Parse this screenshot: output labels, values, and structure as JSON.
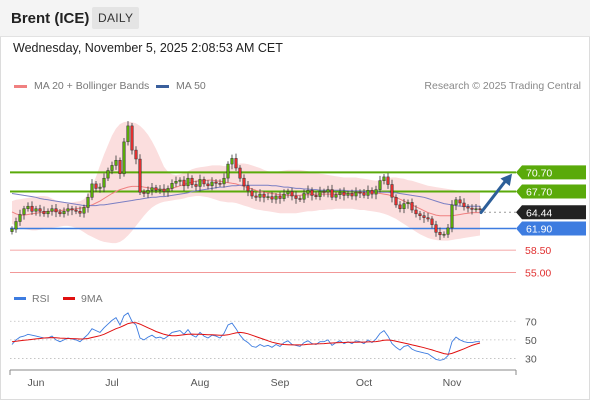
{
  "header": {
    "title": "Brent (ICE)",
    "period": "DAILY"
  },
  "datetime": "Wednesday, November 5, 2025 2:08:53 AM CET",
  "legend": [
    {
      "label": "MA 20 + Bollinger Bands",
      "color": "#f08080"
    },
    {
      "label": "MA 50",
      "color": "#3a5f9c"
    }
  ],
  "credit": "Research © 2025 Trading Central",
  "chart_data": {
    "type": "candlestick",
    "x_ticks": [
      "Jun",
      "Jul",
      "Aug",
      "Sep",
      "Oct",
      "Nov"
    ],
    "price_ylim": [
      53.5,
      80.5
    ],
    "levels": [
      {
        "label": "70.70",
        "value": 70.7,
        "color": "#5aaa0a",
        "kind": "resistance"
      },
      {
        "label": "67.70",
        "value": 67.7,
        "color": "#5aaa0a",
        "kind": "resistance"
      },
      {
        "label": "64.44",
        "value": 64.44,
        "color": "#222222",
        "kind": "last"
      },
      {
        "label": "61.90",
        "value": 61.9,
        "color": "#3d7ce0",
        "kind": "pivot"
      },
      {
        "label": "58.50",
        "value": 58.5,
        "color": "#e03030",
        "kind": "support"
      },
      {
        "label": "55.00",
        "value": 55.0,
        "color": "#e03030",
        "kind": "support"
      }
    ],
    "forecast_arrow": {
      "from": 64.4,
      "to": 70.5
    },
    "close": [
      61.8,
      63.0,
      64.1,
      65.0,
      65.4,
      64.6,
      65.0,
      64.6,
      64.2,
      64.6,
      65.0,
      64.5,
      64.2,
      64.6,
      65.0,
      64.8,
      64.6,
      64.3,
      65.2,
      66.8,
      68.9,
      68.2,
      68.4,
      69.8,
      71.0,
      71.8,
      72.6,
      70.5,
      75.5,
      78.0,
      74.2,
      72.8,
      67.6,
      67.4,
      67.9,
      68.3,
      67.9,
      68.1,
      67.7,
      68.2,
      69.0,
      69.3,
      69.5,
      68.6,
      69.8,
      68.8,
      68.5,
      69.6,
      68.9,
      68.6,
      69.2,
      69.0,
      68.9,
      69.8,
      72.0,
      72.9,
      71.4,
      69.8,
      68.6,
      67.8,
      67.0,
      66.8,
      67.3,
      66.8,
      66.9,
      66.5,
      67.0,
      66.6,
      67.3,
      67.7,
      67.0,
      66.6,
      66.5,
      67.4,
      67.9,
      67.1,
      66.9,
      67.7,
      67.6,
      68.0,
      66.8,
      67.2,
      67.6,
      67.1,
      67.4,
      67.0,
      67.6,
      67.5,
      67.1,
      67.9,
      67.3,
      68.0,
      69.4,
      70.0,
      68.8,
      66.8,
      65.6,
      65.0,
      65.8,
      66.0,
      64.8,
      64.2,
      63.9,
      63.6,
      63.4,
      62.5,
      61.3,
      60.9,
      61.0,
      62.0,
      65.6,
      66.4,
      65.9,
      65.3,
      65.1,
      64.9,
      65.0,
      64.9
    ],
    "ma20": [
      64.5,
      64.2,
      64.0,
      64.0,
      64.1,
      64.2,
      64.3,
      64.4,
      64.5,
      64.6,
      64.6,
      64.7,
      64.7,
      64.8,
      64.8,
      64.9,
      65.0,
      65.1,
      65.2,
      65.4,
      65.6,
      65.9,
      66.2,
      66.6,
      67.0,
      67.4,
      67.7,
      68.0,
      68.2,
      68.4,
      68.5,
      68.5,
      68.5,
      68.4,
      68.3,
      68.2,
      68.1,
      68.0,
      68.0,
      68.0,
      68.2,
      68.4,
      68.6,
      68.8,
      69.0,
      69.2,
      69.3,
      69.4,
      69.4,
      69.5,
      69.5,
      69.4,
      69.3,
      69.2,
      69.1,
      69.0,
      68.9,
      68.7,
      68.5,
      68.3,
      68.1,
      67.9,
      67.7,
      67.6,
      67.5,
      67.4,
      67.3,
      67.2,
      67.2,
      67.1,
      67.1,
      67.1,
      67.1,
      67.2,
      67.2,
      67.2,
      67.3,
      67.3,
      67.3,
      67.3,
      67.3,
      67.3,
      67.3,
      67.4,
      67.4,
      67.4,
      67.5,
      67.5,
      67.6,
      67.6,
      67.6,
      67.5,
      67.4,
      67.3,
      67.2,
      67.0,
      66.8,
      66.5,
      66.2,
      65.9,
      65.6,
      65.3,
      65.0,
      64.7,
      64.4,
      64.2,
      64.0,
      63.9,
      63.9,
      63.9,
      63.9,
      64.0,
      64.1,
      64.2,
      64.3,
      64.4,
      64.4,
      64.4
    ],
    "boll_upper": [
      66.2,
      66.4,
      66.5,
      66.6,
      66.7,
      66.8,
      66.9,
      67.0,
      67.0,
      66.9,
      66.6,
      66.3,
      66.1,
      66.0,
      66.0,
      66.0,
      66.1,
      66.2,
      66.5,
      67.3,
      68.5,
      70.0,
      71.8,
      73.5,
      75.0,
      76.5,
      77.6,
      78.3,
      78.6,
      78.7,
      78.6,
      78.4,
      78.0,
      77.4,
      76.6,
      75.6,
      74.4,
      73.0,
      71.6,
      70.8,
      70.4,
      70.3,
      70.4,
      70.6,
      70.9,
      71.2,
      71.4,
      71.5,
      71.6,
      71.7,
      71.8,
      71.8,
      71.8,
      71.7,
      71.7,
      71.8,
      72.0,
      72.1,
      72.1,
      72.0,
      71.8,
      71.6,
      71.4,
      71.1,
      70.9,
      70.8,
      70.8,
      70.9,
      71.0,
      71.1,
      71.1,
      71.1,
      71.1,
      71.0,
      70.9,
      70.7,
      70.6,
      70.5,
      70.4,
      70.3,
      70.2,
      70.1,
      70.0,
      69.9,
      69.9,
      69.9,
      69.9,
      69.8,
      69.7,
      69.6,
      69.5,
      69.4,
      69.5,
      69.7,
      69.8,
      69.9,
      69.9,
      69.8,
      69.7,
      69.5,
      69.4,
      69.2,
      69.0,
      68.8,
      68.6,
      68.5,
      68.4,
      68.3,
      68.2,
      68.1,
      68.0,
      67.9,
      67.8,
      67.8,
      67.7,
      67.7,
      67.6,
      67.6
    ],
    "boll_lower": [
      62.6,
      62.3,
      62.0,
      61.8,
      61.7,
      61.6,
      61.6,
      61.7,
      61.8,
      61.9,
      62.0,
      62.1,
      62.2,
      62.3,
      62.3,
      62.2,
      62.0,
      61.7,
      61.3,
      60.9,
      60.6,
      60.3,
      60.0,
      59.8,
      59.7,
      59.6,
      59.6,
      59.8,
      60.2,
      60.8,
      61.5,
      62.3,
      63.1,
      63.9,
      64.6,
      65.2,
      65.6,
      65.9,
      66.1,
      66.2,
      66.3,
      66.4,
      66.5,
      66.6,
      66.8,
      66.9,
      67.0,
      67.0,
      66.9,
      66.8,
      66.6,
      66.4,
      66.2,
      66.1,
      66.0,
      66.0,
      65.9,
      65.7,
      65.5,
      65.3,
      65.1,
      64.9,
      64.8,
      64.7,
      64.6,
      64.5,
      64.4,
      64.3,
      64.3,
      64.3,
      64.3,
      64.3,
      64.4,
      64.5,
      64.6,
      64.6,
      64.7,
      64.8,
      64.8,
      64.9,
      64.9,
      65.0,
      65.0,
      65.0,
      65.0,
      65.0,
      64.9,
      64.8,
      64.8,
      64.7,
      64.6,
      64.5,
      64.4,
      64.2,
      64.0,
      63.7,
      63.4,
      63.0,
      62.6,
      62.2,
      61.8,
      61.4,
      61.0,
      60.7,
      60.4,
      60.2,
      60.1,
      60.0,
      60.0,
      60.0,
      60.1,
      60.2,
      60.3,
      60.4,
      60.5,
      60.6,
      60.7,
      60.8
    ],
    "ma50": [
      67.4,
      67.3,
      67.2,
      67.1,
      67.0,
      66.9,
      66.8,
      66.6,
      66.5,
      66.4,
      66.3,
      66.2,
      66.1,
      66.0,
      65.9,
      65.8,
      65.7,
      65.6,
      65.5,
      65.5,
      65.5,
      65.5,
      65.6,
      65.6,
      65.7,
      65.8,
      65.9,
      66.0,
      66.1,
      66.2,
      66.3,
      66.4,
      66.5,
      66.6,
      66.7,
      66.8,
      66.8,
      66.9,
      66.9,
      67.0,
      67.1,
      67.2,
      67.3,
      67.4,
      67.5,
      67.7,
      67.8,
      67.9,
      68.0,
      68.1,
      68.2,
      68.3,
      68.4,
      68.4,
      68.5,
      68.6,
      68.6,
      68.7,
      68.7,
      68.7,
      68.7,
      68.7,
      68.7,
      68.7,
      68.7,
      68.6,
      68.6,
      68.5,
      68.4,
      68.4,
      68.3,
      68.2,
      68.2,
      68.1,
      68.1,
      68.0,
      68.0,
      67.9,
      67.9,
      67.9,
      67.9,
      67.9,
      67.9,
      67.9,
      67.8,
      67.8,
      67.8,
      67.8,
      67.7,
      67.7,
      67.7,
      67.7,
      67.6,
      67.6,
      67.6,
      67.5,
      67.5,
      67.4,
      67.3,
      67.2,
      67.1,
      67.0,
      66.9,
      66.8,
      66.6,
      66.4,
      66.2,
      66.0,
      65.8,
      65.7,
      65.6,
      65.5,
      65.4,
      65.4,
      65.4,
      65.4,
      65.4,
      65.4
    ],
    "rsi_panel": {
      "legend": [
        {
          "label": "RSI",
          "color": "#3d7ce0"
        },
        {
          "label": "9MA",
          "color": "#e01010"
        }
      ],
      "ticks": [
        "70",
        "50",
        "30"
      ],
      "tick_values": [
        70,
        50,
        30
      ],
      "ylim": [
        24,
        80
      ],
      "rsi": [
        45,
        50,
        53,
        54,
        56,
        55,
        54,
        53,
        52,
        52,
        54,
        50,
        48,
        50,
        52,
        51,
        50,
        48,
        52,
        56,
        62,
        60,
        58,
        63,
        67,
        71,
        74,
        66,
        76,
        79,
        70,
        66,
        52,
        50,
        53,
        55,
        52,
        53,
        51,
        54,
        58,
        59,
        60,
        56,
        61,
        55,
        53,
        58,
        54,
        52,
        55,
        54,
        52,
        57,
        66,
        68,
        62,
        55,
        50,
        47,
        43,
        42,
        45,
        43,
        44,
        42,
        45,
        43,
        47,
        49,
        45,
        44,
        43,
        47,
        49,
        46,
        45,
        48,
        48,
        50,
        44,
        47,
        49,
        46,
        48,
        46,
        49,
        48,
        46,
        50,
        47,
        51,
        57,
        60,
        54,
        46,
        42,
        39,
        43,
        44,
        40,
        38,
        37,
        36,
        35,
        32,
        29,
        28,
        29,
        33,
        48,
        53,
        50,
        48,
        47,
        47,
        48,
        48
      ],
      "ma9": [
        48,
        48.5,
        49,
        49.5,
        50,
        50.5,
        51,
        51.5,
        52,
        52.2,
        52.4,
        52.2,
        51.9,
        51.7,
        51.5,
        51.3,
        51.1,
        50.9,
        51,
        51.5,
        52.5,
        53.5,
        54.5,
        56,
        58,
        60,
        62,
        63.5,
        65.5,
        67.5,
        68.5,
        68.5,
        67,
        65,
        63,
        61,
        59,
        57.5,
        56,
        55,
        54.5,
        54.5,
        55,
        55.5,
        56,
        56.2,
        56,
        56,
        55.8,
        55.6,
        55.4,
        55.2,
        55,
        55,
        55.5,
        56.5,
        57.5,
        58,
        57.5,
        56.5,
        55,
        53.5,
        52,
        50.5,
        49,
        47.5,
        46.5,
        45.5,
        45,
        44.8,
        44.6,
        44.6,
        44.6,
        44.8,
        45.2,
        45.4,
        45.6,
        45.8,
        46,
        46.4,
        46.6,
        46.8,
        47,
        47.2,
        47.4,
        47.4,
        47.5,
        47.6,
        47.6,
        47.8,
        47.9,
        48.1,
        48.8,
        49.6,
        49.8,
        49.4,
        48.6,
        47.6,
        46.6,
        45.6,
        44.6,
        43.6,
        42.6,
        41.6,
        40.4,
        39.2,
        37.8,
        36.5,
        35.2,
        34.6,
        35.4,
        37,
        38.6,
        40.4,
        42.2,
        44,
        45.4,
        46.6
      ]
    }
  }
}
